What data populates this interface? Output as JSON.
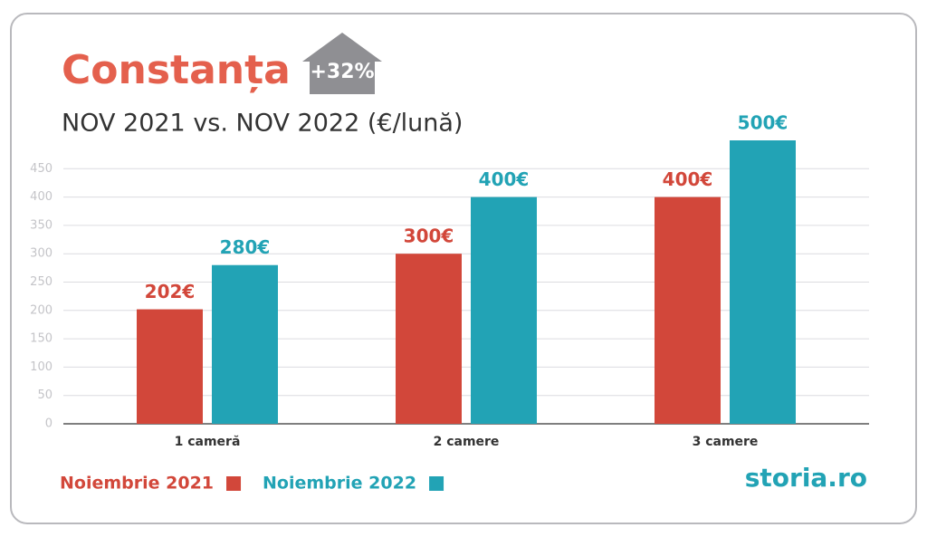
{
  "chart_data": {
    "type": "bar",
    "title": "Constanța",
    "badge": "+32%",
    "subtitle": "NOV 2021 vs. NOV 2022 (€/lună)",
    "brand": "storia.ro",
    "categories": [
      "1 cameră",
      "2 camere",
      "3 camere"
    ],
    "series": [
      {
        "name": "Noiembrie 2021",
        "color": "#d2473a",
        "values": [
          202,
          300,
          400
        ],
        "value_labels": [
          "202€",
          "300€",
          "400€"
        ]
      },
      {
        "name": "Noiembrie 2022",
        "color": "#22a3b5",
        "values": [
          280,
          400,
          500
        ],
        "value_labels": [
          "280€",
          "400€",
          "500€"
        ]
      }
    ],
    "ylim": [
      0,
      500
    ],
    "yticks": [
      0,
      50,
      100,
      150,
      200,
      250,
      300,
      350,
      400,
      450
    ],
    "grid": true
  }
}
